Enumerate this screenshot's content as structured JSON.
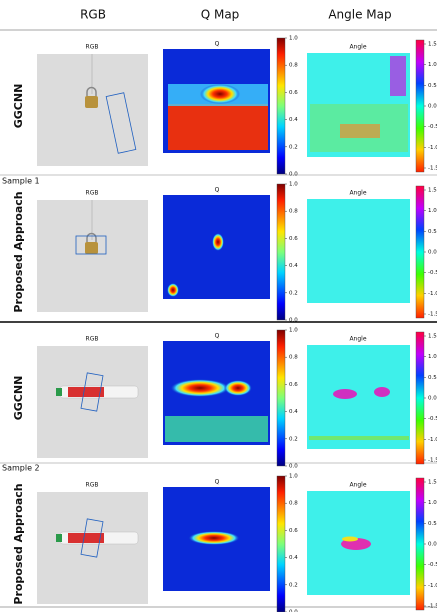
{
  "header": {
    "columns": [
      "RGB",
      "Q Map",
      "Angle Map"
    ]
  },
  "samples": [
    "Sample 1",
    "Sample 2"
  ],
  "rows": [
    {
      "label": "GGCNN",
      "panel_titles": [
        "RGB",
        "Q",
        "Angle"
      ]
    },
    {
      "label": "Proposed Approach",
      "panel_titles": [
        "RGB",
        "Q",
        "Angle"
      ]
    },
    {
      "label": "GGCNN",
      "panel_titles": [
        "RGB",
        "Q",
        "Angle"
      ]
    },
    {
      "label": "Proposed Approach",
      "panel_titles": [
        "RGB",
        "Q",
        "Angle"
      ]
    }
  ],
  "q_colorbar_ticks": [
    "1.0",
    "0.8",
    "0.6",
    "0.4",
    "0.2",
    "0.0"
  ],
  "angle_colorbar_ticks": [
    "1.5",
    "1.0",
    "0.5",
    "0.0",
    "-0.5",
    "-1.0",
    "-1.5"
  ]
}
